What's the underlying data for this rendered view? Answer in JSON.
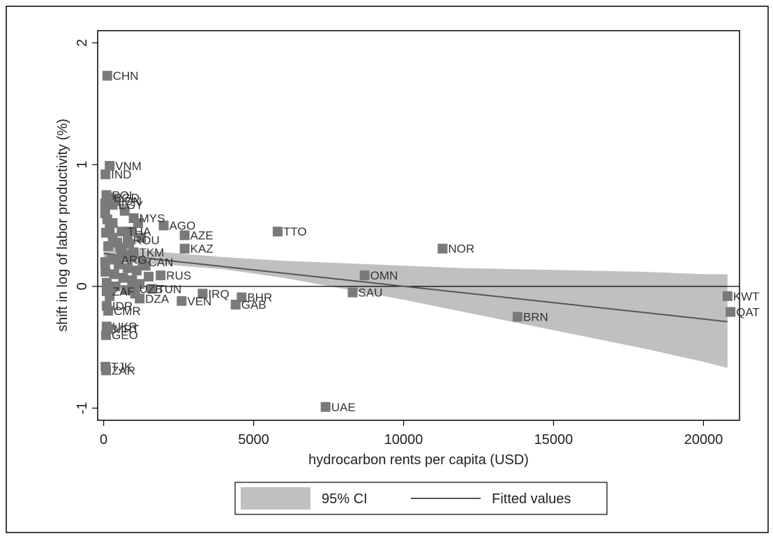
{
  "chart_data": {
    "type": "scatter",
    "xlabel": "hydrocarbon rents per capita (USD)",
    "ylabel": "shift in log of labor productivity (%)",
    "xlim": [
      -200,
      21200
    ],
    "ylim": [
      -1.1,
      2.1
    ],
    "x_ticks": [
      0,
      5000,
      10000,
      15000,
      20000
    ],
    "y_ticks": [
      -1,
      0,
      1,
      2
    ],
    "legend_position": "bottom",
    "legend": [
      {
        "label": "95% CI",
        "kind": "band",
        "color": "#c0c0c0"
      },
      {
        "label": "Fitted values",
        "kind": "line",
        "color": "#555555"
      }
    ],
    "fitted_line": {
      "x": [
        0,
        20800
      ],
      "y": [
        0.27,
        -0.29
      ]
    },
    "ci_band": {
      "x": [
        0,
        2000,
        4000,
        6000,
        8000,
        10000,
        12000,
        14000,
        16000,
        18000,
        20000,
        20800
      ],
      "upper": [
        0.33,
        0.28,
        0.24,
        0.21,
        0.19,
        0.17,
        0.15,
        0.14,
        0.13,
        0.12,
        0.1,
        0.1
      ],
      "lower": [
        0.2,
        0.18,
        0.14,
        0.07,
        -0.02,
        -0.11,
        -0.21,
        -0.31,
        -0.41,
        -0.51,
        -0.62,
        -0.67
      ]
    },
    "points": [
      {
        "label": "CHN",
        "x": 120,
        "y": 1.73
      },
      {
        "label": "VNM",
        "x": 200,
        "y": 0.99
      },
      {
        "label": "IND",
        "x": 60,
        "y": 0.92
      },
      {
        "label": "POL",
        "x": 90,
        "y": 0.75
      },
      {
        "label": "BGD",
        "x": 150,
        "y": 0.73
      },
      {
        "label": "IDN",
        "x": 400,
        "y": 0.7
      },
      {
        "label": "EGY",
        "x": 300,
        "y": 0.67
      },
      {
        "label": "MYS",
        "x": 1000,
        "y": 0.56
      },
      {
        "label": "AGO",
        "x": 2000,
        "y": 0.5
      },
      {
        "label": "THA",
        "x": 600,
        "y": 0.45
      },
      {
        "label": "AZE",
        "x": 2700,
        "y": 0.42
      },
      {
        "label": "TTO",
        "x": 5800,
        "y": 0.45
      },
      {
        "label": "ROU",
        "x": 800,
        "y": 0.38
      },
      {
        "label": "KAZ",
        "x": 2700,
        "y": 0.31
      },
      {
        "label": "TKM",
        "x": 1000,
        "y": 0.28
      },
      {
        "label": "NOR",
        "x": 11300,
        "y": 0.31
      },
      {
        "label": "CAN",
        "x": 1300,
        "y": 0.2
      },
      {
        "label": "ARG",
        "x": 400,
        "y": 0.22
      },
      {
        "label": "RUS",
        "x": 1900,
        "y": 0.09
      },
      {
        "label": "OMN",
        "x": 8700,
        "y": 0.09
      },
      {
        "label": "ZAF",
        "x": 100,
        "y": -0.04
      },
      {
        "label": "UZB",
        "x": 1000,
        "y": -0.02
      },
      {
        "label": "TUN",
        "x": 1600,
        "y": -0.02
      },
      {
        "label": "DZA",
        "x": 1200,
        "y": -0.1
      },
      {
        "label": "IRQ",
        "x": 3300,
        "y": -0.06
      },
      {
        "label": "VEN",
        "x": 2600,
        "y": -0.12
      },
      {
        "label": "BHR",
        "x": 4600,
        "y": -0.09
      },
      {
        "label": "GAB",
        "x": 4400,
        "y": -0.15
      },
      {
        "label": "SAU",
        "x": 8300,
        "y": -0.05
      },
      {
        "label": "BRN",
        "x": 13800,
        "y": -0.25
      },
      {
        "label": "KWT",
        "x": 20800,
        "y": -0.08
      },
      {
        "label": "QAT",
        "x": 20900,
        "y": -0.21
      },
      {
        "label": "IDR",
        "x": 100,
        "y": -0.16
      },
      {
        "label": "CMR",
        "x": 150,
        "y": -0.2
      },
      {
        "label": "UKR",
        "x": 100,
        "y": -0.33
      },
      {
        "label": "MRT",
        "x": 150,
        "y": -0.35
      },
      {
        "label": "GEO",
        "x": 80,
        "y": -0.4
      },
      {
        "label": "TJK",
        "x": 60,
        "y": -0.66
      },
      {
        "label": "ZAR",
        "x": 80,
        "y": -0.69
      },
      {
        "label": "UAE",
        "x": 7400,
        "y": -0.99
      }
    ],
    "cluster_points": [
      {
        "x": 50,
        "y": 0.6
      },
      {
        "x": 120,
        "y": 0.55
      },
      {
        "x": 200,
        "y": 0.48
      },
      {
        "x": 80,
        "y": 0.44
      },
      {
        "x": 300,
        "y": 0.4
      },
      {
        "x": 450,
        "y": 0.36
      },
      {
        "x": 150,
        "y": 0.33
      },
      {
        "x": 600,
        "y": 0.3
      },
      {
        "x": 700,
        "y": 0.26
      },
      {
        "x": 900,
        "y": 0.24
      },
      {
        "x": 250,
        "y": 0.22
      },
      {
        "x": 500,
        "y": 0.18
      },
      {
        "x": 800,
        "y": 0.15
      },
      {
        "x": 1100,
        "y": 0.13
      },
      {
        "x": 60,
        "y": 0.12
      },
      {
        "x": 350,
        "y": 0.1
      },
      {
        "x": 650,
        "y": 0.07
      },
      {
        "x": 950,
        "y": 0.05
      },
      {
        "x": 1200,
        "y": 0.02
      },
      {
        "x": 100,
        "y": 0.03
      },
      {
        "x": 400,
        "y": 0.0
      },
      {
        "x": 750,
        "y": -0.03
      },
      {
        "x": 1050,
        "y": -0.06
      },
      {
        "x": 200,
        "y": -0.08
      },
      {
        "x": 550,
        "y": 0.32
      },
      {
        "x": 850,
        "y": 0.35
      },
      {
        "x": 1250,
        "y": 0.4
      },
      {
        "x": 300,
        "y": 0.52
      },
      {
        "x": 700,
        "y": 0.62
      },
      {
        "x": 1400,
        "y": 0.17
      },
      {
        "x": 1500,
        "y": 0.08
      },
      {
        "x": 50,
        "y": 0.2
      },
      {
        "x": 50,
        "y": 0.68
      },
      {
        "x": 120,
        "y": 0.72
      },
      {
        "x": 900,
        "y": 0.45
      },
      {
        "x": 1150,
        "y": 0.52
      }
    ]
  }
}
